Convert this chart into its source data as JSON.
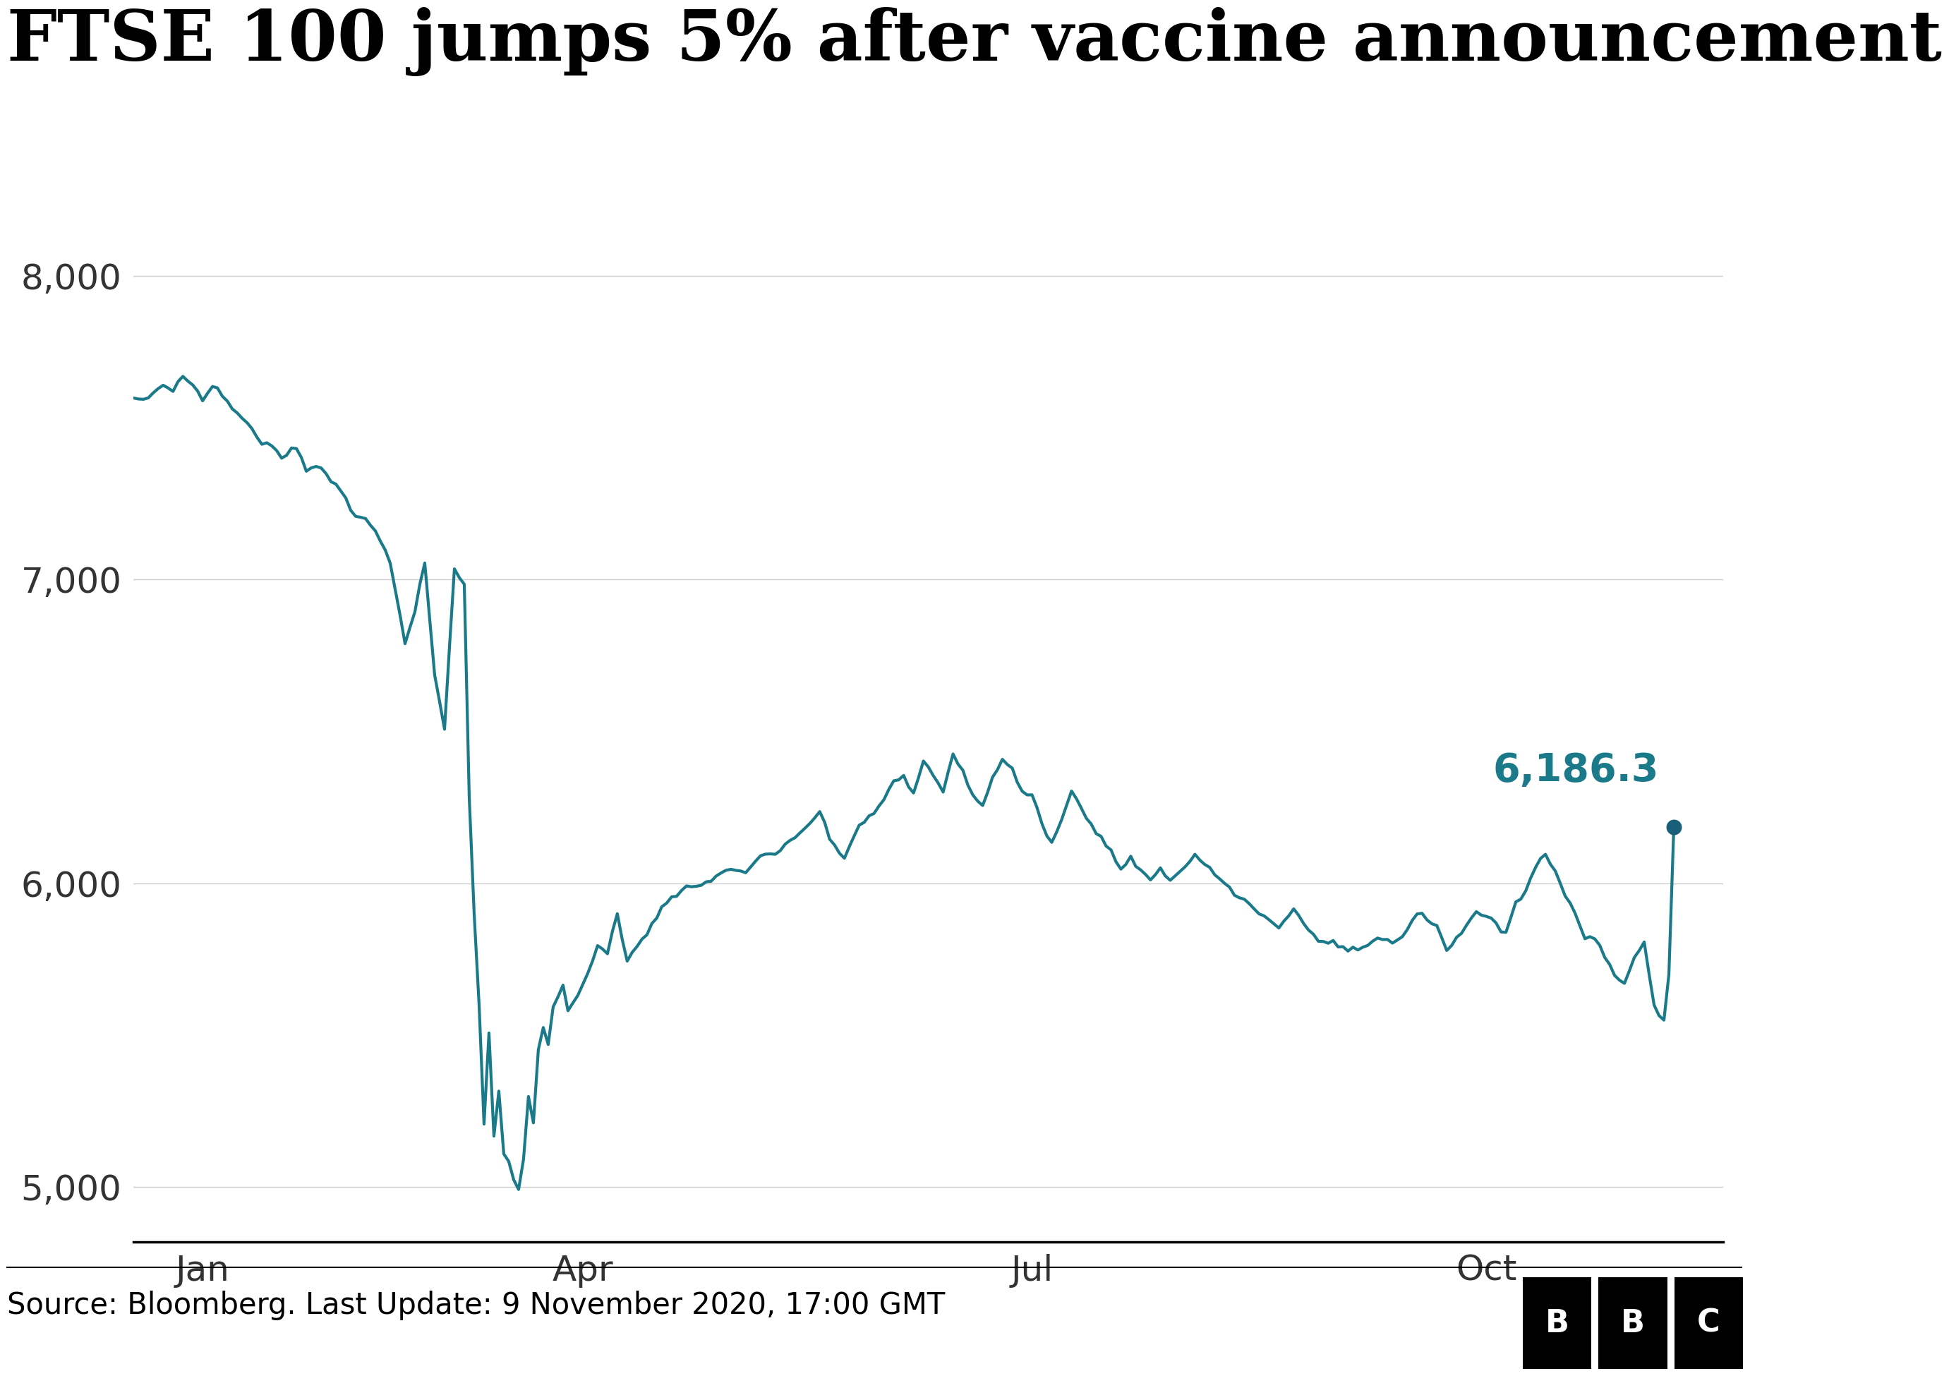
{
  "title": "FTSE 100 jumps 5% after vaccine announcement",
  "source_text": "Source: Bloomberg. Last Update: 9 November 2020, 17:00 GMT",
  "final_value": "6,186.3",
  "line_color": "#1a7a8a",
  "dot_color": "#1a5f7a",
  "annotation_color": "#1a7a8a",
  "background_color": "#ffffff",
  "ytick_labels": [
    "5,000",
    "6,000",
    "7,000",
    "8,000"
  ],
  "x_tick_labels": [
    "Jan",
    "Apr",
    "Jul",
    "Oct"
  ],
  "title_fontsize": 72,
  "tick_fontsize": 36,
  "source_fontsize": 30,
  "annotation_fontsize": 40,
  "line_width": 3.0
}
